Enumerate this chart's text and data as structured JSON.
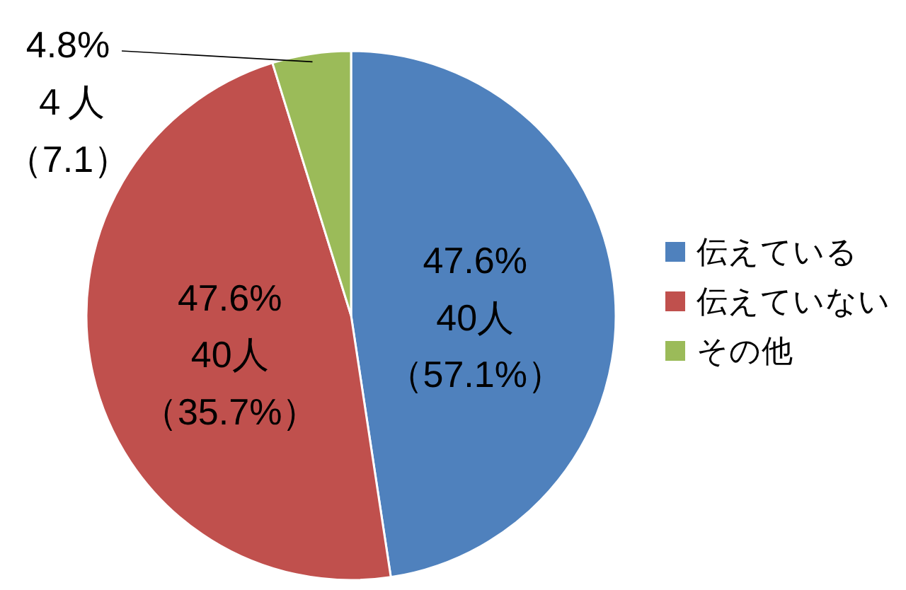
{
  "chart_data": {
    "type": "pie",
    "categories": [
      "伝えている",
      "伝えていない",
      "その他"
    ],
    "values": [
      47.6,
      47.6,
      4.8
    ],
    "colors": [
      "#4f81bd",
      "#c0504d",
      "#9bbb59"
    ],
    "value_labels": [
      "47.6%40人（57.1%）",
      "47.6%40人（35.7%）",
      "4.8%４人（7.1）"
    ],
    "legend": "right"
  }
}
